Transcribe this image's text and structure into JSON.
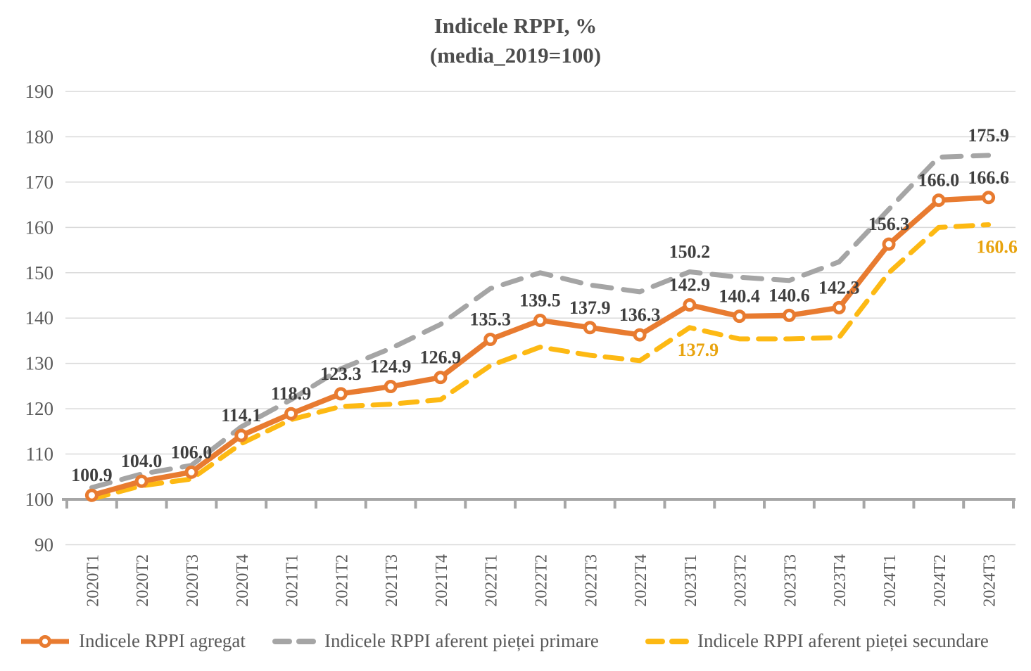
{
  "title": {
    "line1": "Indicele RPPI, %",
    "line2": "(media_2019=100)"
  },
  "chart_data": {
    "type": "line",
    "title": "Indicele RPPI, % (media_2019=100)",
    "xlabel": "",
    "ylabel": "",
    "ylim": [
      90,
      190
    ],
    "ytick_step": 10,
    "grid": true,
    "legend_position": "bottom",
    "categories": [
      "2020T1",
      "2020T2",
      "2020T3",
      "2020T4",
      "2021T1",
      "2021T2",
      "2021T3",
      "2021T4",
      "2022T1",
      "2022T2",
      "2022T3",
      "2022T4",
      "2023T1",
      "2023T2",
      "2023T3",
      "2023T4",
      "2024T1",
      "2024T2",
      "2024T3"
    ],
    "series": [
      {
        "name": "Indicele RPPI agregat",
        "color": "#e87b30",
        "style": "solid",
        "markers": true,
        "values": [
          100.9,
          104.0,
          106.0,
          114.1,
          118.9,
          123.3,
          124.9,
          126.9,
          135.3,
          139.5,
          137.9,
          136.3,
          142.9,
          140.4,
          140.6,
          142.3,
          156.3,
          166.0,
          166.6
        ],
        "labels": "all",
        "label_color": "#3f3f3f",
        "label_side": "above",
        "label_dx": 0
      },
      {
        "name": "Indicele RPPI aferent pieței primare",
        "color": "#a5a5a5",
        "style": "dashed",
        "markers": false,
        "values": [
          102.6,
          105.6,
          107.5,
          116.0,
          122.0,
          128.8,
          133.3,
          138.6,
          146.5,
          150.0,
          147.3,
          145.8,
          150.2,
          149.0,
          148.3,
          152.4,
          164.0,
          175.5,
          175.9
        ],
        "labels": "some",
        "labeled_points": [
          12,
          18
        ],
        "label_color": "#3f3f3f",
        "label_side": "above",
        "label_dx": 0
      },
      {
        "name": "Indicele RPPI aferent pieței secundare",
        "color": "#fdb913",
        "style": "dashed",
        "markers": false,
        "values": [
          100.1,
          103.0,
          104.5,
          112.3,
          117.6,
          120.5,
          121.0,
          122.0,
          129.5,
          133.6,
          131.8,
          130.6,
          137.9,
          135.4,
          135.4,
          135.7,
          150.0,
          160.0,
          160.6
        ],
        "labels": "some",
        "labeled_points": [
          12,
          18
        ],
        "label_color": "#e8a30e",
        "label_side": "below",
        "label_dx": 12
      }
    ],
    "axis_colors": {
      "gridline": "#d9d9d9",
      "axis_line": "#a6a6a6",
      "tick_label": "#595959",
      "title": "#4d4d4d"
    }
  }
}
